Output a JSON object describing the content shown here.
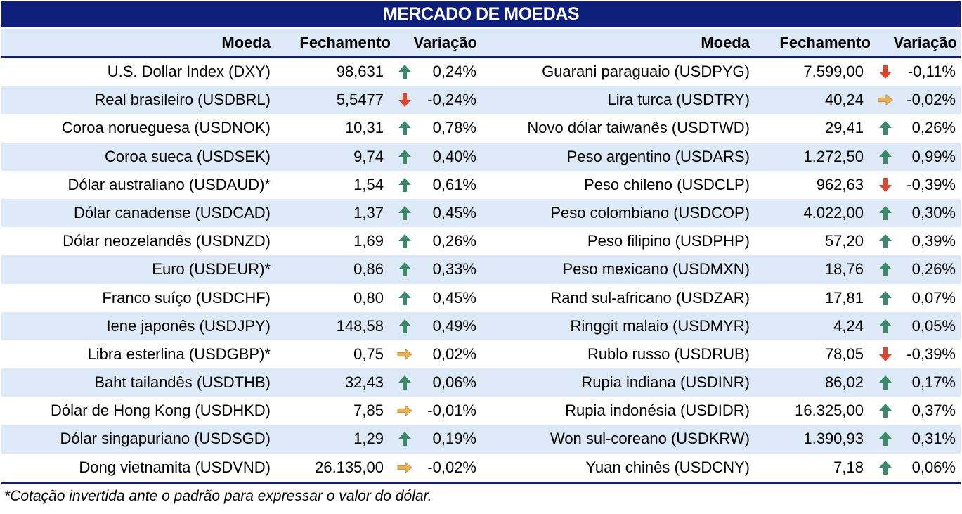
{
  "title": "MERCADO DE MOEDAS",
  "headers": {
    "moeda": "Moeda",
    "fechamento": "Fechamento",
    "variacao": "Variação"
  },
  "colors": {
    "navy": "#0d1f7a",
    "band": "#dde9f7",
    "up": "#3a8a6a",
    "down": "#e0442a",
    "flat": "#e8b050"
  },
  "left": [
    {
      "name": "U.S. Dollar Index (DXY)",
      "close": "98,631",
      "trend": "up",
      "var": "0,24%"
    },
    {
      "name": "Real brasileiro (USDBRL)",
      "close": "5,5477",
      "trend": "down",
      "var": "-0,24%"
    },
    {
      "name": "Coroa norueguesa (USDNOK)",
      "close": "10,31",
      "trend": "up",
      "var": "0,78%"
    },
    {
      "name": "Coroa sueca (USDSEK)",
      "close": "9,74",
      "trend": "up",
      "var": "0,40%"
    },
    {
      "name": "Dólar australiano (USDAUD)*",
      "close": "1,54",
      "trend": "up",
      "var": "0,61%"
    },
    {
      "name": "Dólar canadense (USDCAD)",
      "close": "1,37",
      "trend": "up",
      "var": "0,45%"
    },
    {
      "name": "Dólar neozelandês (USDNZD)",
      "close": "1,69",
      "trend": "up",
      "var": "0,26%"
    },
    {
      "name": "Euro (USDEUR)*",
      "close": "0,86",
      "trend": "up",
      "var": "0,33%"
    },
    {
      "name": "Franco suíço (USDCHF)",
      "close": "0,80",
      "trend": "up",
      "var": "0,45%"
    },
    {
      "name": "Iene japonês (USDJPY)",
      "close": "148,58",
      "trend": "up",
      "var": "0,49%"
    },
    {
      "name": "Libra esterlina (USDGBP)*",
      "close": "0,75",
      "trend": "flat",
      "var": "0,02%"
    },
    {
      "name": "Baht tailandês (USDTHB)",
      "close": "32,43",
      "trend": "up",
      "var": "0,06%"
    },
    {
      "name": "Dólar de Hong Kong (USDHKD)",
      "close": "7,85",
      "trend": "flat",
      "var": "-0,01%"
    },
    {
      "name": "Dólar singapuriano (USDSGD)",
      "close": "1,29",
      "trend": "up",
      "var": "0,19%"
    },
    {
      "name": "Dong vietnamita (USDVND)",
      "close": "26.135,00",
      "trend": "flat",
      "var": "-0,02%"
    }
  ],
  "right": [
    {
      "name": "Guarani paraguaio (USDPYG)",
      "close": "7.599,00",
      "trend": "down",
      "var": "-0,11%"
    },
    {
      "name": "Lira turca (USDTRY)",
      "close": "40,24",
      "trend": "flat",
      "var": "-0,02%"
    },
    {
      "name": "Novo dólar taiwanês (USDTWD)",
      "close": "29,41",
      "trend": "up",
      "var": "0,26%"
    },
    {
      "name": "Peso argentino (USDARS)",
      "close": "1.272,50",
      "trend": "up",
      "var": "0,99%"
    },
    {
      "name": "Peso chileno (USDCLP)",
      "close": "962,63",
      "trend": "down",
      "var": "-0,39%"
    },
    {
      "name": "Peso colombiano (USDCOP)",
      "close": "4.022,00",
      "trend": "up",
      "var": "0,30%"
    },
    {
      "name": "Peso filipino (USDPHP)",
      "close": "57,20",
      "trend": "up",
      "var": "0,39%"
    },
    {
      "name": "Peso mexicano (USDMXN)",
      "close": "18,76",
      "trend": "up",
      "var": "0,26%"
    },
    {
      "name": "Rand sul-africano (USDZAR)",
      "close": "17,81",
      "trend": "up",
      "var": "0,07%"
    },
    {
      "name": "Ringgit malaio (USDMYR)",
      "close": "4,24",
      "trend": "up",
      "var": "0,05%"
    },
    {
      "name": "Rublo russo (USDRUB)",
      "close": "78,05",
      "trend": "down",
      "var": "-0,39%"
    },
    {
      "name": "Rupia indiana (USDINR)",
      "close": "86,02",
      "trend": "up",
      "var": "0,17%"
    },
    {
      "name": "Rupia indonésia (USDIDR)",
      "close": "16.325,00",
      "trend": "up",
      "var": "0,37%"
    },
    {
      "name": "Won sul-coreano (USDKRW)",
      "close": "1.390,93",
      "trend": "up",
      "var": "0,31%"
    },
    {
      "name": "Yuan chinês (USDCNY)",
      "close": "7,18",
      "trend": "up",
      "var": "0,06%"
    }
  ],
  "footnote": "*Cotação invertida ante o padrão para expressar o valor do dólar."
}
